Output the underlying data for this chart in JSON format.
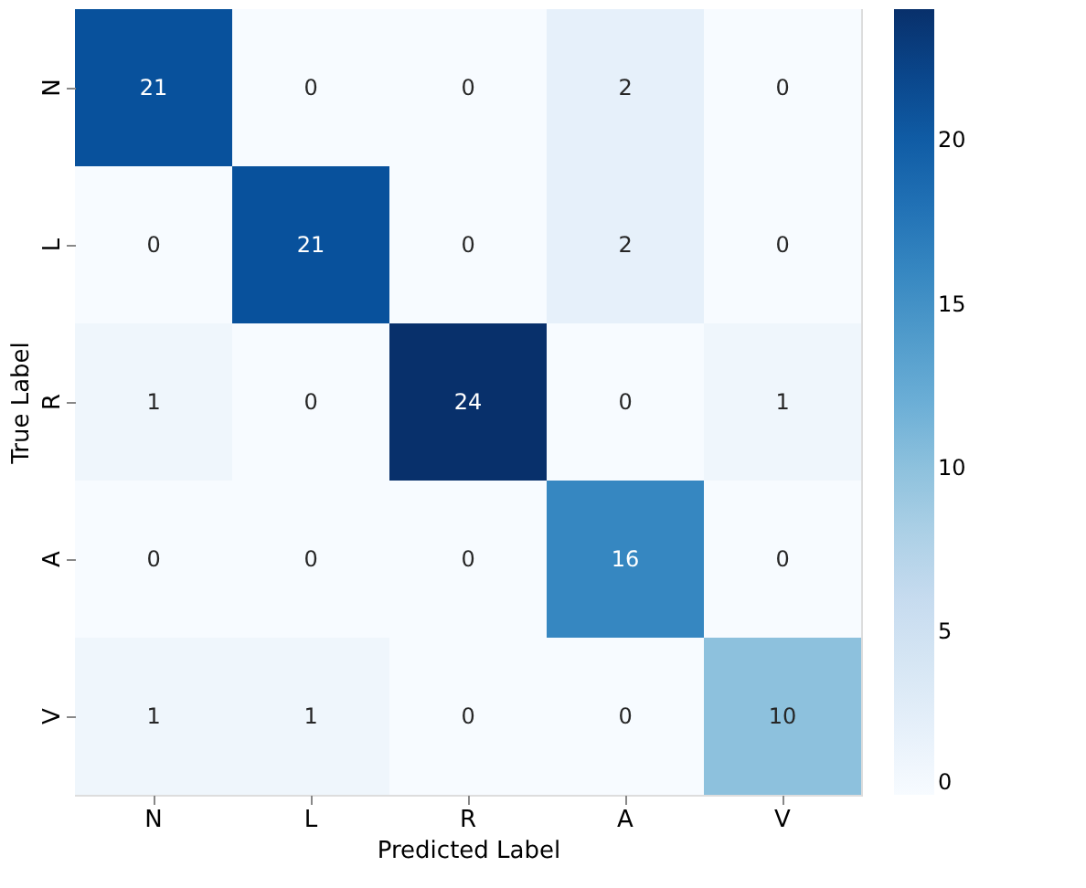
{
  "chart_data": {
    "type": "heatmap",
    "xlabel": "Predicted Label",
    "ylabel": "True Label",
    "categories": [
      "N",
      "L",
      "R",
      "A",
      "V"
    ],
    "y_categories": [
      "N",
      "L",
      "R",
      "A",
      "V"
    ],
    "cells": [
      [
        21,
        0,
        0,
        2,
        0
      ],
      [
        0,
        21,
        0,
        2,
        0
      ],
      [
        1,
        0,
        24,
        0,
        1
      ],
      [
        0,
        0,
        0,
        16,
        0
      ],
      [
        1,
        1,
        0,
        0,
        10
      ]
    ],
    "clim": [
      0,
      24
    ],
    "cticks": [
      0,
      5,
      10,
      15,
      20
    ],
    "data_labels": true
  }
}
